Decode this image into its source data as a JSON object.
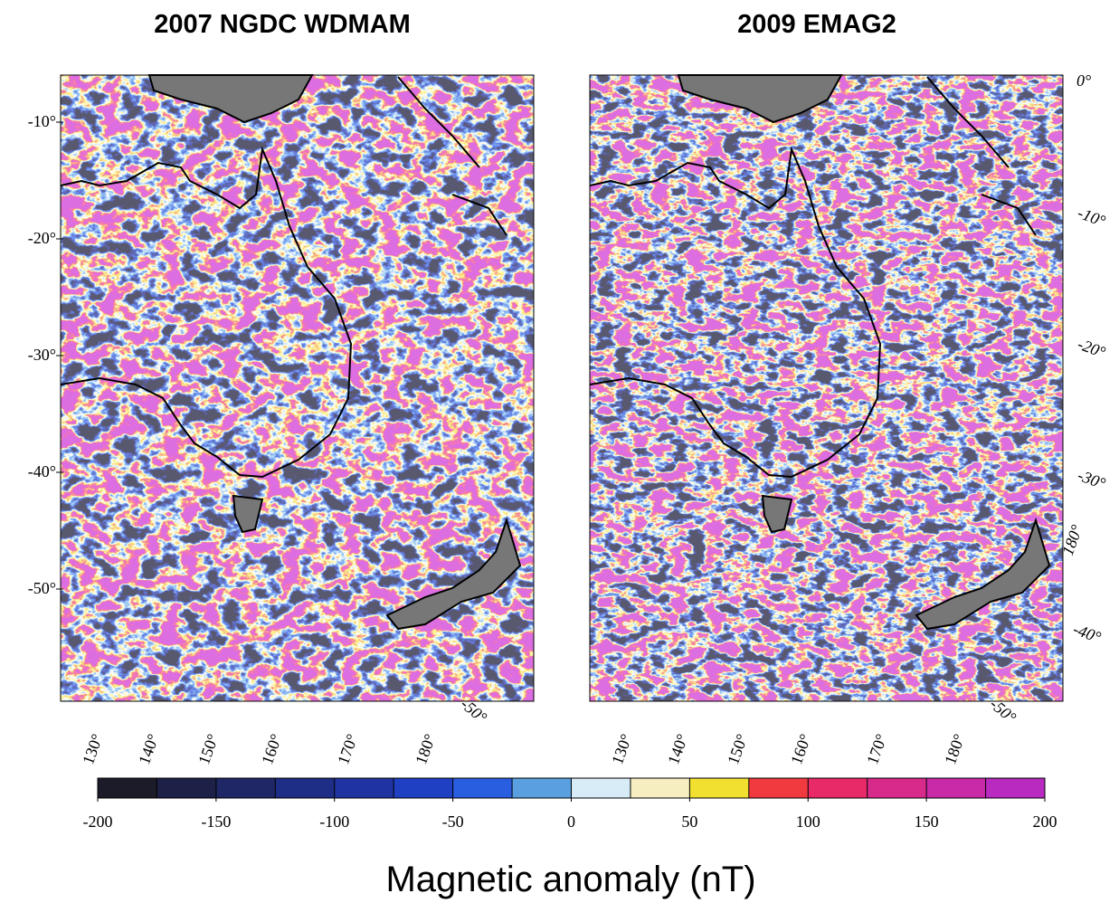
{
  "panels": [
    {
      "title": "2007 NGDC WDMAM",
      "left_labels": [
        "-10°",
        "-20°",
        "-30°",
        "-40°",
        "-50°"
      ],
      "bottom_labels": [
        "130°",
        "140°",
        "150°",
        "160°",
        "170°",
        "180°",
        "-50°"
      ]
    },
    {
      "title": "2009 EMAG2",
      "bottom_labels": [
        "130°",
        "140°",
        "150°",
        "160°",
        "170°",
        "180°",
        "-50°"
      ],
      "right_labels": [
        "0°",
        "-10°",
        "-20°",
        "-30°",
        "180°",
        "-40°"
      ]
    }
  ],
  "colorbar": {
    "label": "Magnetic anomaly (nT)",
    "lim": [
      -200,
      200
    ],
    "ticks": [
      -200,
      -150,
      -100,
      -50,
      0,
      50,
      100,
      150,
      200
    ],
    "colors": [
      "#1b1b2a",
      "#1e2147",
      "#1f2766",
      "#1e2d85",
      "#1f34a0",
      "#2040c4",
      "#2a5ee0",
      "#5aa0e0",
      "#d8ecf8",
      "#f6eec0",
      "#f2e030",
      "#f03a40",
      "#e82a68",
      "#d82a8a",
      "#c82aa8",
      "#b82ac0"
    ]
  }
}
